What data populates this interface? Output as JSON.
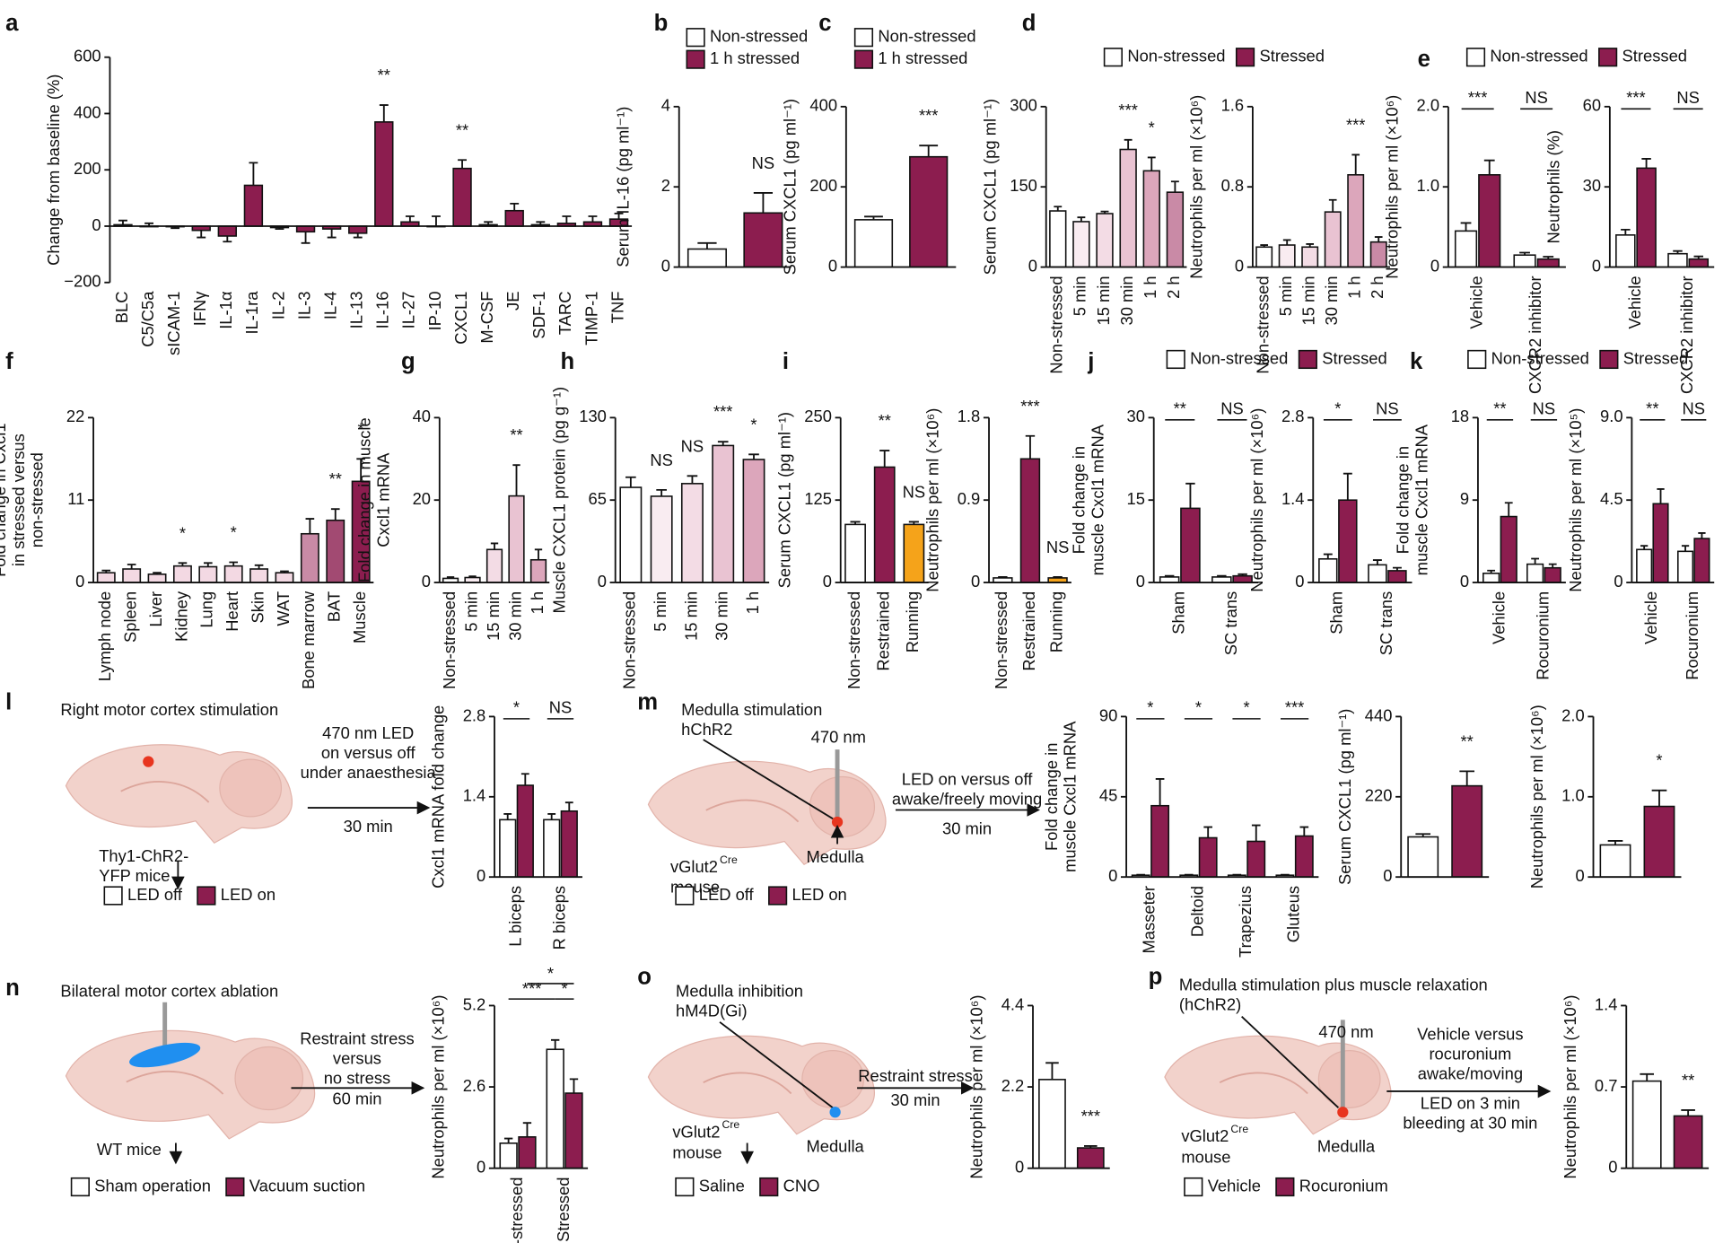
{
  "chart_data": [
    {
      "type": "bar",
      "panel": "a",
      "ylabel": "Change from baseline (%)",
      "color": "#8c1d4f",
      "categories": [
        "BLC",
        "C5/C5a",
        "sICAM-1",
        "IFNγ",
        "IL-1α",
        "IL-1ra",
        "IL-2",
        "IL-3",
        "IL-4",
        "IL-13",
        "IL-16",
        "IL-27",
        "IP-10",
        "CXCL1",
        "M-CSF",
        "JE",
        "SDF-1",
        "TARC",
        "TIMP-1",
        "TNF"
      ],
      "values": [
        5,
        0,
        -2,
        -15,
        -35,
        145,
        -5,
        -20,
        -10,
        -25,
        370,
        15,
        0,
        205,
        5,
        55,
        5,
        10,
        15,
        25
      ],
      "errors": [
        15,
        10,
        5,
        25,
        20,
        80,
        5,
        40,
        30,
        15,
        60,
        20,
        35,
        30,
        10,
        25,
        10,
        25,
        20,
        20
      ],
      "annotations": [
        null,
        null,
        null,
        null,
        null,
        null,
        null,
        null,
        null,
        null,
        "**",
        null,
        null,
        "**",
        null,
        null,
        null,
        null,
        null,
        null
      ],
      "ylim": [
        -200,
        600
      ],
      "yticks": [
        {
          "value": -200,
          "label": "−200"
        },
        0,
        200,
        400,
        600
      ]
    },
    {
      "type": "bar",
      "panel": "b",
      "ylabel": "Serum IL-16 (pg ml⁻¹)",
      "categories": [
        null,
        null
      ],
      "colors": [
        "#ffffff",
        "#8c1d4f"
      ],
      "values": [
        0.45,
        1.35
      ],
      "errors": [
        0.15,
        0.5
      ],
      "annotations": [
        null,
        "NS"
      ],
      "legend": [
        {
          "label": "Non-stressed",
          "color": "#ffffff"
        },
        {
          "label": "1 h stressed",
          "color": "#8c1d4f"
        }
      ],
      "ylim": [
        0,
        4
      ],
      "yticks": [
        0,
        2,
        4
      ]
    },
    {
      "type": "bar",
      "panel": "c",
      "ylabel": "Serum CXCL1 (pg ml⁻¹)",
      "categories": [
        null,
        null
      ],
      "colors": [
        "#ffffff",
        "#8c1d4f"
      ],
      "values": [
        118,
        275
      ],
      "errors": [
        8,
        28
      ],
      "annotations": [
        null,
        "***"
      ],
      "legend": [
        {
          "label": "Non-stressed",
          "color": "#ffffff"
        },
        {
          "label": "1 h stressed",
          "color": "#8c1d4f"
        }
      ],
      "ylim": [
        0,
        400
      ],
      "yticks": [
        0,
        200,
        400
      ]
    },
    {
      "type": "bar",
      "panel": "d",
      "ylabel": "Serum CXCL1 (pg ml⁻¹)",
      "categories": [
        "Non-stressed",
        "5 min",
        "15 min",
        "30 min",
        "1 h",
        "2 h"
      ],
      "colors": [
        "#ffffff",
        "#f9ecf1",
        "#f3dce5",
        "#e9c3d2",
        "#dca6bb",
        "#c98aa6"
      ],
      "values": [
        105,
        85,
        100,
        220,
        180,
        140
      ],
      "errors": [
        8,
        8,
        4,
        18,
        25,
        20
      ],
      "annotations": [
        null,
        null,
        null,
        "***",
        "*",
        null
      ],
      "legend": [
        {
          "label": "Non-stressed",
          "color": "#ffffff"
        },
        {
          "label": "Stressed",
          "color": "#8c1d4f"
        }
      ],
      "ylim": [
        0,
        300
      ],
      "yticks": [
        0,
        150,
        300
      ]
    },
    {
      "type": "bar",
      "ylabel": "Neutrophils per ml (×10⁶)",
      "categories": [
        "Non-stressed",
        "5 min",
        "15 min",
        "30 min",
        "1 h",
        "2 h"
      ],
      "colors": [
        "#ffffff",
        "#f9ecf1",
        "#f3dce5",
        "#e9c3d2",
        "#dca6bb",
        "#c98aa6"
      ],
      "values": [
        0.2,
        0.22,
        0.2,
        0.55,
        0.92,
        0.25
      ],
      "errors": [
        0.02,
        0.05,
        0.03,
        0.12,
        0.2,
        0.05
      ],
      "annotations": [
        null,
        null,
        null,
        null,
        "***",
        null
      ],
      "ylim": [
        0,
        1.6
      ],
      "yticks": [
        0,
        0.8,
        1.6
      ]
    },
    {
      "type": "bar",
      "panel": "e",
      "ylabel": "Neutrophils per ml (×10⁶)",
      "categories": [
        "Vehicle",
        "CXCR2 inhibitor"
      ],
      "series": [
        {
          "name": "Non-stressed",
          "color": "#ffffff",
          "values": [
            0.45,
            0.15
          ],
          "errors": [
            0.1,
            0.03
          ]
        },
        {
          "name": "Stressed",
          "color": "#8c1d4f",
          "values": [
            1.15,
            0.1
          ],
          "errors": [
            0.18,
            0.03
          ]
        }
      ],
      "annotations": [
        "***",
        "NS"
      ],
      "ylim": [
        0,
        2.0
      ],
      "yticks": [
        0,
        {
          "value": 1.0,
          "label": "1.0"
        },
        {
          "value": 2.0,
          "label": "2.0"
        }
      ]
    },
    {
      "type": "bar",
      "ylabel": "Neutrophils (%)",
      "categories": [
        "Vehicle",
        "CXCR2 inhibitor"
      ],
      "series": [
        {
          "color": "#ffffff",
          "values": [
            12,
            5
          ],
          "errors": [
            2,
            1
          ]
        },
        {
          "color": "#8c1d4f",
          "values": [
            37,
            3
          ],
          "errors": [
            3.5,
            1
          ]
        }
      ],
      "annotations": [
        "***",
        "NS"
      ],
      "ylim": [
        0,
        60
      ],
      "yticks": [
        0,
        30,
        60
      ]
    },
    {
      "type": "bar",
      "panel": "f",
      "ylabel": [
        "Fold change in Cxcl1",
        "in stressed versus",
        "non-stressed"
      ],
      "categories": [
        "Lymph node",
        "Spleen",
        "Liver",
        "Kidney",
        "Lung",
        "Heart",
        "Skin",
        "WAT",
        "Bone marrow",
        "BAT",
        "Muscle"
      ],
      "colors": [
        "#f3d9e3",
        "#f3d9e3",
        "#f3d9e3",
        "#f3d9e3",
        "#f3d9e3",
        "#f3d9e3",
        "#f3d9e3",
        "#f3d9e3",
        "#c98aa6",
        "#a24a72",
        "#8c1d4f"
      ],
      "values": [
        1.3,
        1.8,
        1.1,
        2.2,
        2.1,
        2.2,
        1.8,
        1.3,
        6.5,
        8.3,
        13.5
      ],
      "errors": [
        0.3,
        0.6,
        0.2,
        0.4,
        0.5,
        0.5,
        0.5,
        0.2,
        2,
        1.5,
        3
      ],
      "annotations": [
        null,
        null,
        null,
        "*",
        null,
        "*",
        null,
        null,
        null,
        "**",
        "*"
      ],
      "ylim": [
        0,
        22
      ],
      "yticks": [
        0,
        11,
        22
      ]
    },
    {
      "type": "bar",
      "panel": "g",
      "ylabel": [
        "Fold change in muscle",
        "Cxcl1 mRNA"
      ],
      "categories": [
        "Non-stressed",
        "5 min",
        "15 min",
        "30 min",
        "1 h"
      ],
      "colors": [
        "#ffffff",
        "#f9ecf1",
        "#f3dce5",
        "#e9c3d2",
        "#dca6bb"
      ],
      "values": [
        1,
        1.2,
        8,
        21,
        5.5
      ],
      "errors": [
        0.3,
        0.3,
        1.5,
        7.5,
        2.5
      ],
      "annotations": [
        null,
        null,
        null,
        "**",
        null
      ],
      "ylim": [
        0,
        40
      ],
      "yticks": [
        0,
        20,
        40
      ]
    },
    {
      "type": "bar",
      "panel": "h",
      "ylabel": "Muscle CXCL1 protein (pg g⁻¹)",
      "categories": [
        "Non-stressed",
        "5 min",
        "15 min",
        "30 min",
        "1 h"
      ],
      "colors": [
        "#ffffff",
        "#f9ecf1",
        "#f3dce5",
        "#e9c3d2",
        "#dca6bb"
      ],
      "values": [
        75,
        68,
        78,
        108,
        97
      ],
      "errors": [
        8,
        5,
        6,
        3,
        4
      ],
      "annotations": [
        null,
        "NS",
        "NS",
        "***",
        "*"
      ],
      "ylim": [
        0,
        130
      ],
      "yticks": [
        0,
        65,
        130
      ]
    },
    {
      "type": "bar",
      "panel": "i",
      "ylabel": "Serum CXCL1 (pg ml⁻¹)",
      "categories": [
        "Non-stressed",
        "Restrained",
        "Running"
      ],
      "colors": [
        "#ffffff",
        "#8c1d4f",
        "#f5a31a"
      ],
      "values": [
        88,
        175,
        88
      ],
      "errors": [
        4,
        25,
        4
      ],
      "annotations": [
        null,
        "**",
        "NS"
      ],
      "ylim": [
        0,
        250
      ],
      "yticks": [
        0,
        125,
        250
      ]
    },
    {
      "type": "bar",
      "ylabel": "Neutrophils per ml (×10⁶)",
      "categories": [
        "Non-stressed",
        "Restrained",
        "Running"
      ],
      "colors": [
        "#ffffff",
        "#8c1d4f",
        "#f5a31a"
      ],
      "values": [
        0.05,
        1.35,
        0.05
      ],
      "errors": [
        0.01,
        0.25,
        0.01
      ],
      "annotations": [
        null,
        "***",
        "NS"
      ],
      "ylim": [
        0,
        1.8
      ],
      "yticks": [
        0,
        0.9,
        1.8
      ]
    },
    {
      "type": "bar",
      "panel": "j",
      "ylabel": [
        "Fold change in",
        "muscle Cxcl1 mRNA"
      ],
      "categories": [
        "Sham",
        "SC trans"
      ],
      "series": [
        {
          "name": "Non-stressed",
          "color": "#ffffff",
          "values": [
            1,
            1
          ],
          "errors": [
            0.2,
            0.2
          ]
        },
        {
          "name": "Stressed",
          "color": "#8c1d4f",
          "values": [
            13.5,
            1.2
          ],
          "errors": [
            4.5,
            0.3
          ]
        }
      ],
      "annotations": [
        "**",
        "NS"
      ],
      "ylim": [
        0,
        30
      ],
      "yticks": [
        0,
        15,
        30
      ]
    },
    {
      "type": "bar",
      "ylabel": "Neutrophils per ml (×10⁶)",
      "categories": [
        "Sham",
        "SC trans"
      ],
      "series": [
        {
          "color": "#ffffff",
          "values": [
            0.4,
            0.3
          ],
          "errors": [
            0.08,
            0.08
          ]
        },
        {
          "color": "#8c1d4f",
          "values": [
            1.4,
            0.2
          ],
          "errors": [
            0.45,
            0.05
          ]
        }
      ],
      "annotations": [
        "*",
        "NS"
      ],
      "ylim": [
        0,
        2.8
      ],
      "yticks": [
        0,
        1.4,
        2.8
      ]
    },
    {
      "type": "bar",
      "panel": "k",
      "ylabel": [
        "Fold change in",
        "muscle Cxcl1 mRNA"
      ],
      "categories": [
        "Vehicle",
        "Rocuronium"
      ],
      "series": [
        {
          "name": "Non-stressed",
          "color": "#ffffff",
          "values": [
            1,
            2
          ],
          "errors": [
            0.3,
            0.6
          ]
        },
        {
          "name": "Stressed",
          "color": "#8c1d4f",
          "values": [
            7.2,
            1.6
          ],
          "errors": [
            1.5,
            0.4
          ]
        }
      ],
      "annotations": [
        "**",
        "NS"
      ],
      "ylim": [
        0,
        18
      ],
      "yticks": [
        0,
        9,
        18
      ]
    },
    {
      "type": "bar",
      "ylabel": "Neutrophils per ml (×10⁵)",
      "categories": [
        "Vehicle",
        "Rocuronium"
      ],
      "series": [
        {
          "color": "#ffffff",
          "values": [
            1.8,
            1.7
          ],
          "errors": [
            0.2,
            0.3
          ]
        },
        {
          "color": "#8c1d4f",
          "values": [
            4.3,
            2.4
          ],
          "errors": [
            0.8,
            0.3
          ]
        }
      ],
      "annotations": [
        "**",
        "NS"
      ],
      "ylim": [
        0,
        9.0
      ],
      "yticks": [
        0,
        4.5,
        {
          "value": 9.0,
          "label": "9.0"
        }
      ]
    },
    {
      "type": "bar",
      "ylabel": "Cxcl1 mRNA fold change",
      "categories": [
        "L biceps",
        "R biceps"
      ],
      "series": [
        {
          "color": "#ffffff",
          "values": [
            1.0,
            1.0
          ],
          "errors": [
            0.1,
            0.1
          ]
        },
        {
          "color": "#8c1d4f",
          "values": [
            1.6,
            1.15
          ],
          "errors": [
            0.2,
            0.15
          ]
        }
      ],
      "annotations": [
        "*",
        "NS"
      ],
      "ylim": [
        0,
        2.8
      ],
      "yticks": [
        0,
        1.4,
        2.8
      ]
    },
    {
      "type": "bar",
      "ylabel": [
        "Fold change in",
        "muscle Cxcl1 mRNA"
      ],
      "categories": [
        "Masseter",
        "Deltoid",
        "Trapezius",
        "Gluteus"
      ],
      "series": [
        {
          "color": "#ffffff",
          "values": [
            1,
            1,
            1,
            1
          ],
          "errors": [
            0.3,
            0.3,
            0.3,
            0.3
          ]
        },
        {
          "color": "#8c1d4f",
          "values": [
            40,
            22,
            20,
            23
          ],
          "errors": [
            15,
            6,
            9,
            5
          ]
        }
      ],
      "annotations": [
        "*",
        "*",
        "*",
        "***"
      ],
      "ylim": [
        0,
        90
      ],
      "yticks": [
        0,
        45,
        90
      ]
    },
    {
      "type": "bar",
      "ylabel": "Serum CXCL1 (pg ml⁻¹)",
      "categories": [
        null,
        null
      ],
      "colors": [
        "#ffffff",
        "#8c1d4f"
      ],
      "values": [
        110,
        250
      ],
      "errors": [
        8,
        40
      ],
      "annotations": [
        null,
        "**"
      ],
      "ylim": [
        0,
        440
      ],
      "yticks": [
        0,
        220,
        440
      ]
    },
    {
      "type": "bar",
      "ylabel": "Neutrophils per ml (×10⁶)",
      "categories": [
        null,
        null
      ],
      "colors": [
        "#ffffff",
        "#8c1d4f"
      ],
      "values": [
        0.4,
        0.88
      ],
      "errors": [
        0.05,
        0.2
      ],
      "annotations": [
        null,
        "*"
      ],
      "ylim": [
        0,
        2.0
      ],
      "yticks": [
        0,
        {
          "value": 1.0,
          "label": "1.0"
        },
        {
          "value": 2.0,
          "label": "2.0"
        }
      ]
    },
    {
      "type": "bar",
      "ylabel": "Neutrophils per ml (×10⁶)",
      "categories": [
        "Non-stressed",
        "Stressed"
      ],
      "series": [
        {
          "color": "#ffffff",
          "values": [
            0.8,
            3.8
          ],
          "errors": [
            0.15,
            0.3
          ]
        },
        {
          "color": "#8c1d4f",
          "values": [
            1.0,
            2.4
          ],
          "errors": [
            0.45,
            0.45
          ]
        }
      ],
      "brackets": [
        "***",
        "*",
        "*"
      ],
      "ylim": [
        0,
        5.2
      ],
      "yticks": [
        0,
        2.6,
        5.2
      ]
    },
    {
      "type": "bar",
      "ylabel": "Neutrophils per ml (×10⁶)",
      "categories": [
        null,
        null
      ],
      "colors": [
        "#ffffff",
        "#8c1d4f"
      ],
      "values": [
        2.4,
        0.55
      ],
      "errors": [
        0.45,
        0.05
      ],
      "annotations": [
        null,
        "***"
      ],
      "ylim": [
        0,
        4.4
      ],
      "yticks": [
        0,
        2.2,
        4.4
      ]
    },
    {
      "type": "bar",
      "ylabel": "Neutrophils per ml (×10⁶)",
      "categories": [
        null,
        null
      ],
      "colors": [
        "#ffffff",
        "#8c1d4f"
      ],
      "values": [
        0.75,
        0.45
      ],
      "errors": [
        0.06,
        0.05
      ],
      "annotations": [
        null,
        "**"
      ],
      "ylim": [
        0,
        1.4
      ],
      "yticks": [
        0,
        0.7,
        1.4
      ]
    }
  ],
  "diagrams": [
    {
      "panel": "l",
      "texts": [
        "Right motor cortex stimulation",
        "470 nm LED",
        "on versus off",
        "under anaesthesia",
        "30 min",
        "Thy1-ChR2-",
        "YFP mice"
      ],
      "legend": [
        {
          "label": "LED off",
          "color": "#ffffff"
        },
        {
          "label": "LED on",
          "color": "#8c1d4f"
        }
      ]
    },
    {
      "panel": "m",
      "texts": [
        "Medulla stimulation",
        "hChR2",
        "470 nm",
        "Medulla",
        "vGlut2",
        "Cre",
        "mouse",
        "LED on versus off",
        "awake/freely moving",
        "30 min"
      ],
      "legend": [
        {
          "label": "LED off",
          "color": "#ffffff"
        },
        {
          "label": "LED on",
          "color": "#8c1d4f"
        }
      ]
    },
    {
      "panel": "n",
      "texts": [
        "Bilateral motor cortex ablation",
        "Restraint stress",
        "versus",
        "no stress",
        "60 min",
        "WT mice"
      ],
      "legend": [
        {
          "label": "Sham operation",
          "color": "#ffffff"
        },
        {
          "label": "Vacuum suction",
          "color": "#8c1d4f"
        }
      ]
    },
    {
      "panel": "o",
      "texts": [
        "Medulla inhibition",
        "hM4D(Gi)",
        "Restraint stress",
        "30 min",
        "Medulla",
        "vGlut2",
        "Cre",
        "mouse"
      ],
      "legend": [
        {
          "label": "Saline",
          "color": "#ffffff"
        },
        {
          "label": "CNO",
          "color": "#8c1d4f"
        }
      ]
    },
    {
      "panel": "p",
      "texts": [
        "Medulla stimulation plus muscle relaxation",
        "(hChR2)",
        "470 nm",
        "Medulla",
        "vGlut2",
        "Cre",
        "mouse",
        "Vehicle versus",
        "rocuronium",
        "awake/moving",
        "LED on 3 min",
        "bleeding at 30 min"
      ],
      "legend": [
        {
          "label": "Vehicle",
          "color": "#ffffff"
        },
        {
          "label": "Rocuronium",
          "color": "#8c1d4f"
        }
      ]
    }
  ]
}
